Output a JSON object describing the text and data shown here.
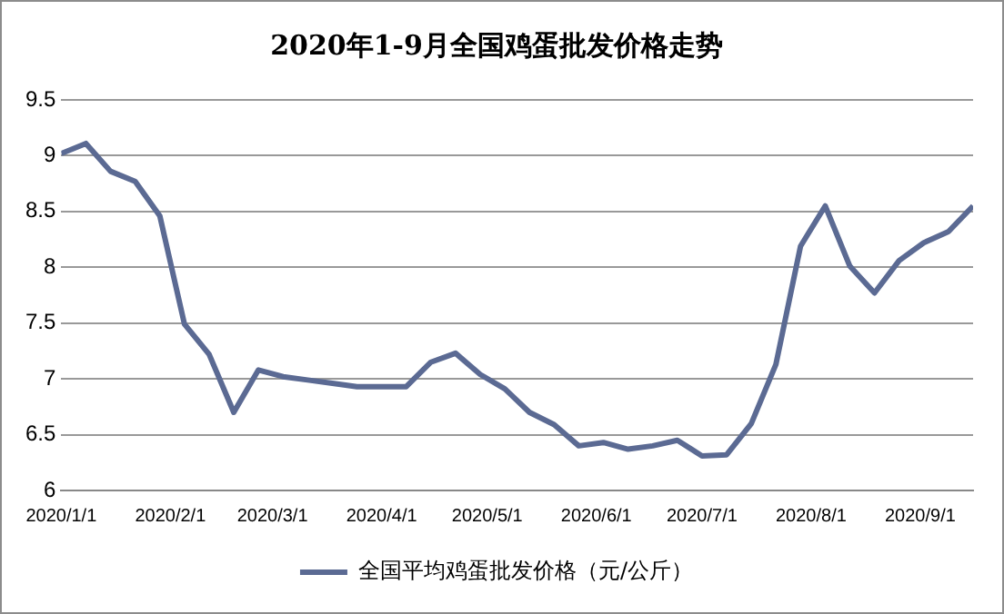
{
  "chart_data": {
    "type": "line",
    "title": "2020年1-9月全国鸡蛋批发价格走势",
    "x": [
      "2020-01-01",
      "2020-01-08",
      "2020-01-15",
      "2020-01-22",
      "2020-01-29",
      "2020-02-05",
      "2020-02-12",
      "2020-02-19",
      "2020-02-26",
      "2020-03-04",
      "2020-03-11",
      "2020-03-18",
      "2020-03-25",
      "2020-04-01",
      "2020-04-08",
      "2020-04-15",
      "2020-04-22",
      "2020-04-29",
      "2020-05-06",
      "2020-05-13",
      "2020-05-20",
      "2020-05-27",
      "2020-06-03",
      "2020-06-10",
      "2020-06-17",
      "2020-06-24",
      "2020-07-01",
      "2020-07-08",
      "2020-07-15",
      "2020-07-22",
      "2020-07-29",
      "2020-08-05",
      "2020-08-12",
      "2020-08-19",
      "2020-08-26",
      "2020-09-02",
      "2020-09-09",
      "2020-09-16"
    ],
    "series": [
      {
        "name": "全国平均鸡蛋批发价格（元/公斤）",
        "color": "#5b6a93",
        "values": [
          9.02,
          9.11,
          8.86,
          8.77,
          8.46,
          7.49,
          7.22,
          6.7,
          7.08,
          7.02,
          6.99,
          6.96,
          6.93,
          6.93,
          6.93,
          7.15,
          7.23,
          7.04,
          6.91,
          6.7,
          6.59,
          6.4,
          6.43,
          6.37,
          6.4,
          6.45,
          6.31,
          6.32,
          6.6,
          7.13,
          8.19,
          8.55,
          8.01,
          7.77,
          8.06,
          8.22,
          8.32,
          8.55
        ]
      }
    ],
    "xlim": [
      "2020-01-01",
      "2020-09-16"
    ],
    "xticks": [
      {
        "value": "2020-01-01",
        "label": "2020/1/1"
      },
      {
        "value": "2020-02-01",
        "label": "2020/2/1"
      },
      {
        "value": "2020-03-01",
        "label": "2020/3/1"
      },
      {
        "value": "2020-04-01",
        "label": "2020/4/1"
      },
      {
        "value": "2020-05-01",
        "label": "2020/5/1"
      },
      {
        "value": "2020-06-01",
        "label": "2020/6/1"
      },
      {
        "value": "2020-07-01",
        "label": "2020/7/1"
      },
      {
        "value": "2020-08-01",
        "label": "2020/8/1"
      },
      {
        "value": "2020-09-01",
        "label": "2020/9/1"
      }
    ],
    "ylim": [
      6,
      9.5
    ],
    "yticks": [
      6,
      6.5,
      7,
      7.5,
      8,
      8.5,
      9,
      9.5
    ],
    "grid": "y",
    "legend": "bottom",
    "marker": "none",
    "line_style": "solid"
  }
}
